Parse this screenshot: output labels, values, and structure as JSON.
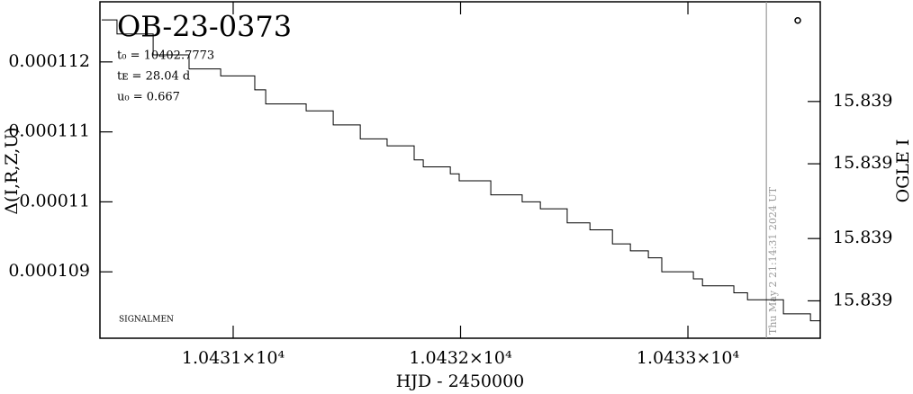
{
  "chart_data": {
    "type": "line",
    "title": "OB-23-0373",
    "x_label": "HJD - 2450000",
    "y_label": "Δ(I,R,Z,U)",
    "y2_label": "OGLE I",
    "annotations": [
      "t₀ = 10402.7773",
      "tᴇ = 28.04 d",
      "u₀ = 0.667"
    ],
    "footer_note": "SIGNALMEN",
    "now_line": {
      "x": 10433.345,
      "label": "Thu May  2 21:14:31 2024 UT"
    },
    "step": "post",
    "xlim": [
      10430.414,
      10433.582
    ],
    "xticks": [
      {
        "value": 10431,
        "label": "1.0431×10⁴"
      },
      {
        "value": 10432,
        "label": "1.0432×10⁴"
      },
      {
        "value": 10433,
        "label": "1.0433×10⁴"
      }
    ],
    "ylim": [
      0.000108051,
      0.000112859
    ],
    "yticks": [
      0.000112,
      0.000111,
      0.00011,
      0.000109
    ],
    "y2lim": [
      15.83916,
      15.83862
    ],
    "y2ticks": [
      {
        "value": 15.83878,
        "label": "15.839"
      },
      {
        "value": 15.83888,
        "label": "15.839"
      },
      {
        "value": 15.839,
        "label": "15.839"
      },
      {
        "value": 15.8391,
        "label": "15.839"
      }
    ],
    "series": [
      {
        "color": "#000000",
        "x": [
          10430.422,
          10430.489,
          10430.648,
          10430.806,
          10430.945,
          10431.095,
          10431.143,
          10431.321,
          10431.44,
          10431.559,
          10431.677,
          10431.796,
          10431.836,
          10431.955,
          10431.994,
          10432.133,
          10432.271,
          10432.351,
          10432.469,
          10432.569,
          10432.668,
          10432.747,
          10432.826,
          10432.885,
          10433.024,
          10433.064,
          10433.202,
          10433.262,
          10433.42,
          10433.539,
          10433.582
        ],
        "values": [
          0.0001126,
          0.0001124,
          0.0001121,
          0.0001119,
          0.0001118,
          0.0001116,
          0.0001114,
          0.0001113,
          0.0001111,
          0.0001109,
          0.0001108,
          0.0001106,
          0.0001105,
          0.0001104,
          0.0001103,
          0.0001101,
          0.00011,
          0.0001099,
          0.0001097,
          0.0001096,
          0.0001094,
          0.0001093,
          0.0001092,
          0.000109,
          0.0001089,
          0.0001088,
          0.0001087,
          0.0001086,
          0.0001084,
          0.0001083,
          0.0001083
        ]
      },
      {
        "color": "#000000",
        "axis": "y2",
        "marker": "circle",
        "x": [
          10433.483
        ],
        "values": [
          15.83865
        ]
      }
    ]
  }
}
